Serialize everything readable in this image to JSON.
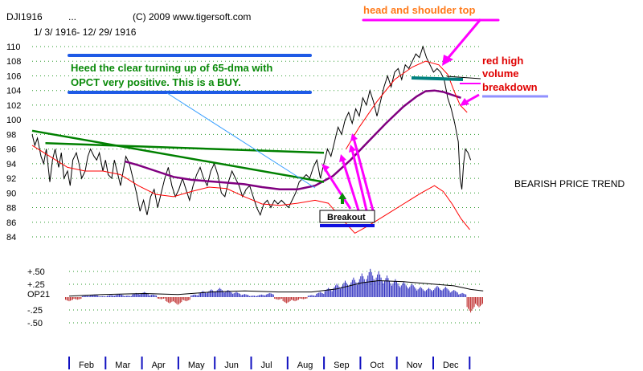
{
  "header": {
    "symbol": "DJI1916",
    "dots": "...",
    "copyright": "(C) 2009 www.tigersoft.com",
    "date_range": "1/ 3/ 1916- 12/ 29/ 1916"
  },
  "chart_data": [
    {
      "type": "line",
      "panel": "price",
      "y_ticks": [
        110,
        108,
        106,
        104,
        102,
        100,
        98,
        96,
        94,
        92,
        90,
        88,
        86,
        84
      ],
      "ylim": [
        83,
        111
      ],
      "x_months": [
        "Feb",
        "Mar",
        "Apr",
        "May",
        "Jun",
        "Jul",
        "Aug",
        "Sep",
        "Oct",
        "Nov",
        "Dec"
      ],
      "series": [
        {
          "role": "price-high-low",
          "color": "#000000",
          "values": [
            [
              1.0,
              98.0
            ],
            [
              1.3,
              96.5
            ],
            [
              1.6,
              97.5
            ],
            [
              2.0,
              95.0
            ],
            [
              2.3,
              94.0
            ],
            [
              2.6,
              96.0
            ],
            [
              3.0,
              91.5
            ],
            [
              3.3,
              94.5
            ],
            [
              3.6,
              96.0
            ],
            [
              4.0,
              93.5
            ],
            [
              4.3,
              95.5
            ],
            [
              4.6,
              92.0
            ],
            [
              5.0,
              93.0
            ],
            [
              5.3,
              91.0
            ],
            [
              5.6,
              94.5
            ],
            [
              6.0,
              95.5
            ],
            [
              6.3,
              94.0
            ],
            [
              6.6,
              92.0
            ],
            [
              7.0,
              93.0
            ],
            [
              7.3,
              95.0
            ],
            [
              7.6,
              96.0
            ],
            [
              8.0,
              95.0
            ],
            [
              8.3,
              94.5
            ],
            [
              8.6,
              95.5
            ],
            [
              9.0,
              93.0
            ],
            [
              9.3,
              94.5
            ],
            [
              9.6,
              92.5
            ],
            [
              10.0,
              92.0
            ],
            [
              10.3,
              94.5
            ],
            [
              10.6,
              93.0
            ],
            [
              11.0,
              91.0
            ],
            [
              11.3,
              93.0
            ],
            [
              11.6,
              95.0
            ],
            [
              12.0,
              94.0
            ],
            [
              12.4,
              92.0
            ],
            [
              12.8,
              90.0
            ],
            [
              13.2,
              87.5
            ],
            [
              13.6,
              89.0
            ],
            [
              14.0,
              87.0
            ],
            [
              14.4,
              89.5
            ],
            [
              14.8,
              90.5
            ],
            [
              15.2,
              88.0
            ],
            [
              15.6,
              90.0
            ],
            [
              16.0,
              92.0
            ],
            [
              16.4,
              93.5
            ],
            [
              16.8,
              91.0
            ],
            [
              17.2,
              89.5
            ],
            [
              17.6,
              90.5
            ],
            [
              18.0,
              92.0
            ],
            [
              18.4,
              90.5
            ],
            [
              18.8,
              89.0
            ],
            [
              19.2,
              91.0
            ],
            [
              19.6,
              92.5
            ],
            [
              20.0,
              93.5
            ],
            [
              20.4,
              92.0
            ],
            [
              20.8,
              91.0
            ],
            [
              21.2,
              93.0
            ],
            [
              21.6,
              94.0
            ],
            [
              22.0,
              92.5
            ],
            [
              22.4,
              90.0
            ],
            [
              22.8,
              89.5
            ],
            [
              23.2,
              91.5
            ],
            [
              23.6,
              93.0
            ],
            [
              24.0,
              92.0
            ],
            [
              24.4,
              91.0
            ],
            [
              24.8,
              89.5
            ],
            [
              25.2,
              90.5
            ],
            [
              25.6,
              91.0
            ],
            [
              26.0,
              89.5
            ],
            [
              26.4,
              88.0
            ],
            [
              26.8,
              87.0
            ],
            [
              27.2,
              88.5
            ],
            [
              27.6,
              89.0
            ],
            [
              28.0,
              88.0
            ],
            [
              28.4,
              89.0
            ],
            [
              28.8,
              88.5
            ],
            [
              29.2,
              89.0
            ],
            [
              29.6,
              88.5
            ],
            [
              30.0,
              88.0
            ],
            [
              30.4,
              89.0
            ],
            [
              30.8,
              90.0
            ],
            [
              31.2,
              91.5
            ],
            [
              31.6,
              92.0
            ],
            [
              32.0,
              92.5
            ],
            [
              32.4,
              92.0
            ],
            [
              32.8,
              93.5
            ],
            [
              33.2,
              94.5
            ],
            [
              33.6,
              92.0
            ],
            [
              34.0,
              94.0
            ],
            [
              34.4,
              96.0
            ],
            [
              34.8,
              95.0
            ],
            [
              35.2,
              97.0
            ],
            [
              35.6,
              99.0
            ],
            [
              36.0,
              98.0
            ],
            [
              36.4,
              100.0
            ],
            [
              36.8,
              101.0
            ],
            [
              37.2,
              99.5
            ],
            [
              37.6,
              101.5
            ],
            [
              38.0,
              100.5
            ],
            [
              38.4,
              103.0
            ],
            [
              38.8,
              102.0
            ],
            [
              39.2,
              104.0
            ],
            [
              39.6,
              102.5
            ],
            [
              40.0,
              100.5
            ],
            [
              40.4,
              102.5
            ],
            [
              40.8,
              104.5
            ],
            [
              41.2,
              106.0
            ],
            [
              41.6,
              104.5
            ],
            [
              42.0,
              106.5
            ],
            [
              42.4,
              107.0
            ],
            [
              42.8,
              105.5
            ],
            [
              43.2,
              107.5
            ],
            [
              43.6,
              107.0
            ],
            [
              44.0,
              108.0
            ],
            [
              44.4,
              109.0
            ],
            [
              44.8,
              108.5
            ],
            [
              45.2,
              110.0
            ],
            [
              45.6,
              108.5
            ],
            [
              46.0,
              107.5
            ],
            [
              46.4,
              106.5
            ],
            [
              46.8,
              107.0
            ],
            [
              47.2,
              106.5
            ],
            [
              47.6,
              105.5
            ],
            [
              48.0,
              103.0
            ],
            [
              48.4,
              101.5
            ],
            [
              48.8,
              99.5
            ],
            [
              49.2,
              97.0
            ],
            [
              49.4,
              92.0
            ],
            [
              49.6,
              90.5
            ],
            [
              49.8,
              94.0
            ],
            [
              50.0,
              96.0
            ],
            [
              50.3,
              95.5
            ],
            [
              50.6,
              94.5
            ]
          ]
        },
        {
          "role": "65-dma",
          "color": "#800080",
          "values": [
            [
              11.5,
              94.3
            ],
            [
              13.0,
              93.8
            ],
            [
              15.0,
              93.0
            ],
            [
              17.0,
              92.2
            ],
            [
              19.0,
              91.8
            ],
            [
              21.0,
              91.6
            ],
            [
              23.0,
              91.4
            ],
            [
              25.0,
              91.2
            ],
            [
              27.0,
              90.8
            ],
            [
              29.0,
              90.5
            ],
            [
              31.0,
              90.5
            ],
            [
              33.0,
              91.0
            ],
            [
              35.0,
              92.3
            ],
            [
              37.0,
              94.5
            ],
            [
              39.0,
              97.0
            ],
            [
              41.0,
              99.5
            ],
            [
              43.0,
              101.8
            ],
            [
              44.5,
              103.2
            ],
            [
              45.5,
              103.9
            ],
            [
              46.5,
              104.0
            ],
            [
              47.5,
              103.8
            ],
            [
              48.5,
              103.4
            ],
            [
              49.5,
              103.0
            ]
          ]
        },
        {
          "role": "upper-band",
          "color": "#ff0000",
          "values": [
            [
              36.5,
              96.0
            ],
            [
              38.0,
              99.0
            ],
            [
              40.0,
              102.5
            ],
            [
              42.0,
              105.5
            ],
            [
              44.0,
              107.2
            ],
            [
              45.5,
              108.0
            ],
            [
              47.0,
              107.5
            ],
            [
              48.0,
              106.2
            ],
            [
              48.7,
              104.0
            ],
            [
              49.4,
              102.0
            ],
            [
              50.2,
              101.0
            ]
          ]
        },
        {
          "role": "lower-band",
          "color": "#ff0000",
          "values": [
            [
              1.0,
              96.5
            ],
            [
              3.0,
              95.0
            ],
            [
              5.0,
              93.5
            ],
            [
              7.0,
              93.0
            ],
            [
              9.0,
              93.0
            ],
            [
              11.0,
              92.5
            ],
            [
              13.0,
              91.0
            ],
            [
              15.0,
              89.8
            ],
            [
              17.0,
              89.5
            ],
            [
              19.0,
              90.2
            ],
            [
              21.0,
              90.8
            ],
            [
              23.0,
              90.6
            ],
            [
              25.0,
              89.5
            ],
            [
              27.0,
              88.5
            ],
            [
              29.0,
              88.3
            ],
            [
              31.0,
              88.6
            ],
            [
              33.0,
              89.0
            ],
            [
              34.5,
              88.6
            ],
            [
              36.0,
              86.5
            ],
            [
              37.5,
              84.5
            ],
            [
              39.0,
              85.5
            ],
            [
              41.0,
              87.0
            ],
            [
              43.0,
              88.5
            ],
            [
              45.0,
              90.0
            ],
            [
              46.5,
              91.0
            ],
            [
              47.5,
              90.2
            ],
            [
              48.5,
              88.5
            ],
            [
              49.5,
              86.5
            ],
            [
              50.5,
              85.0
            ]
          ]
        },
        {
          "role": "trendline-descending",
          "color": "#008000",
          "values": [
            [
              1.0,
              98.5
            ],
            [
              34.0,
              91.5
            ]
          ]
        },
        {
          "role": "trendline-flat",
          "color": "#008000",
          "values": [
            [
              2.5,
              96.8
            ],
            [
              34.0,
              95.5
            ]
          ]
        }
      ]
    },
    {
      "type": "bar",
      "panel": "oscillator",
      "y_ticks": [
        0.5,
        0.25,
        -0.25,
        -0.5
      ],
      "y_tick_labels": [
        "+.50",
        "+.25",
        "-.25",
        "-.50"
      ],
      "ylabel": "OP21",
      "ylim": [
        -0.6,
        0.6
      ],
      "positive_color": "#3030c0",
      "negative_color": "#c03030",
      "bars": [
        [
          1,
          -0.08
        ],
        [
          2,
          -0.05
        ],
        [
          3,
          0.03
        ],
        [
          4,
          0.05
        ],
        [
          5,
          0.02
        ],
        [
          6,
          0.04
        ],
        [
          7,
          0.06
        ],
        [
          8,
          0.03
        ],
        [
          9,
          0.08
        ],
        [
          10,
          0.1
        ],
        [
          11,
          0.05
        ],
        [
          12,
          -0.04
        ],
        [
          13,
          -0.12
        ],
        [
          14,
          -0.15
        ],
        [
          15,
          -0.08
        ],
        [
          16,
          0.05
        ],
        [
          17,
          0.12
        ],
        [
          18,
          0.15
        ],
        [
          19,
          0.18
        ],
        [
          20,
          0.14
        ],
        [
          21,
          0.1
        ],
        [
          22,
          0.06
        ],
        [
          23,
          0.03
        ],
        [
          24,
          0.05
        ],
        [
          25,
          0.08
        ],
        [
          26,
          -0.05
        ],
        [
          27,
          -0.12
        ],
        [
          28,
          -0.08
        ],
        [
          29,
          -0.04
        ],
        [
          30,
          0.04
        ],
        [
          31,
          0.1
        ],
        [
          32,
          0.18
        ],
        [
          33,
          0.26
        ],
        [
          34,
          0.32
        ],
        [
          35,
          0.38
        ],
        [
          36,
          0.46
        ],
        [
          37,
          0.55
        ],
        [
          38,
          0.5
        ],
        [
          39,
          0.42
        ],
        [
          40,
          0.35
        ],
        [
          41,
          0.3
        ],
        [
          42,
          0.26
        ],
        [
          43,
          0.2
        ],
        [
          44,
          0.18
        ],
        [
          45,
          0.22
        ],
        [
          46,
          0.2
        ],
        [
          47,
          0.14
        ],
        [
          48,
          0.08
        ],
        [
          49,
          -0.3
        ],
        [
          50,
          -0.2
        ]
      ],
      "line_color": "#000000",
      "line": [
        [
          1,
          0.02
        ],
        [
          5,
          0.05
        ],
        [
          10,
          0.07
        ],
        [
          14,
          0.05
        ],
        [
          18,
          0.1
        ],
        [
          22,
          0.12
        ],
        [
          26,
          0.1
        ],
        [
          30,
          0.1
        ],
        [
          33,
          0.16
        ],
        [
          36,
          0.28
        ],
        [
          38,
          0.32
        ],
        [
          41,
          0.3
        ],
        [
          44,
          0.26
        ],
        [
          47,
          0.22
        ],
        [
          49,
          0.15
        ],
        [
          50.5,
          0.12
        ]
      ]
    }
  ],
  "annotations": {
    "heed_line1": "Heed the clear turning up of 65-dma with",
    "heed_line2": "OPCT very positive.  This is a BUY.",
    "head_shoulder": "head and shoulder top",
    "red_high": "red high",
    "volume": "volume",
    "breakdown": "breakdown",
    "breakout": "Breakout",
    "bearish_trend": "BEARISH PRICE TREND"
  },
  "colors": {
    "green_text": "#0a8a0a",
    "red_text": "#e00000",
    "orange_text": "#ff7a1a",
    "magenta": "#ff00ff",
    "blue_bar": "#1e5ae6",
    "teal": "#008080",
    "lavender": "#9090ff"
  }
}
